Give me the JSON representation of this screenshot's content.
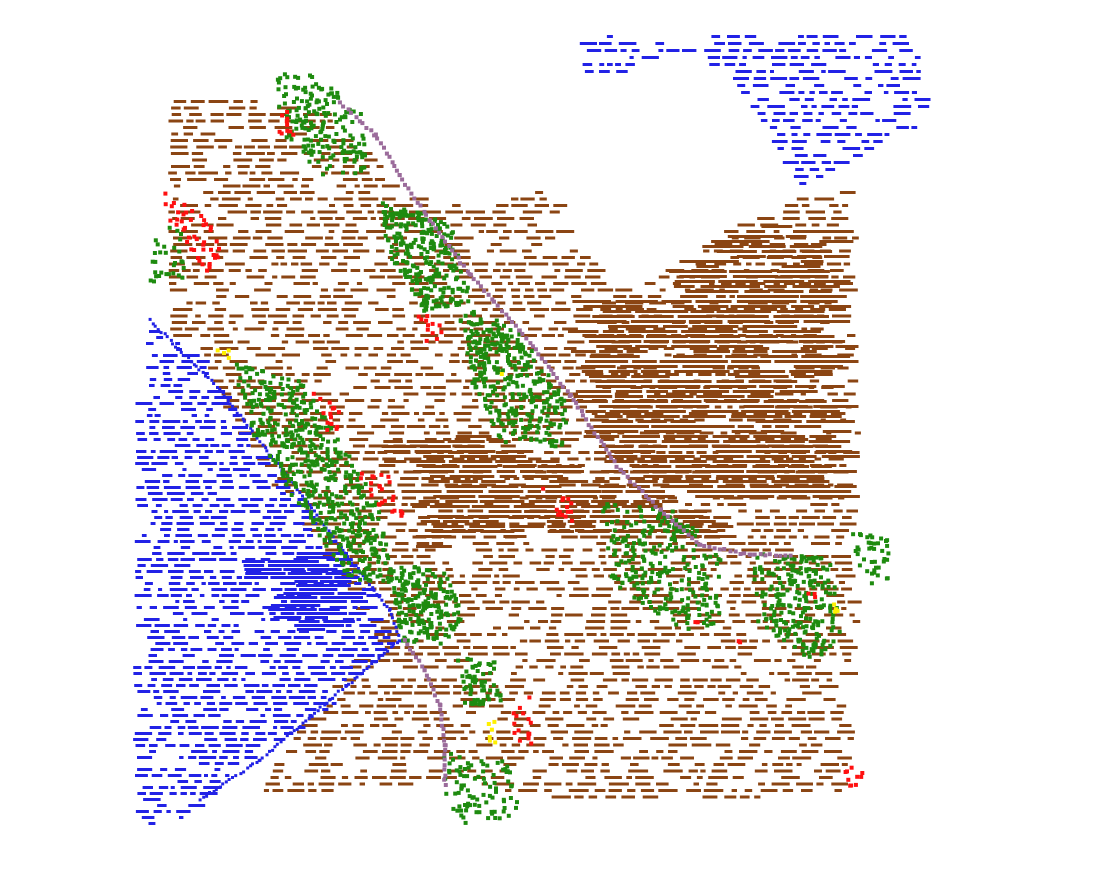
{
  "visualization": {
    "kind": "segmented point cloud (top-down scatter of labeled points)",
    "background": "#ffffff",
    "classes": [
      {
        "id": "terrain",
        "color": "#8B4513"
      },
      {
        "id": "water",
        "color": "#2222E6"
      },
      {
        "id": "vegetation",
        "color": "#1E8B0F"
      },
      {
        "id": "building",
        "color": "#FF1010"
      },
      {
        "id": "road",
        "color": "#9B6B9B"
      },
      {
        "id": "misc",
        "color": "#FFF000"
      }
    ]
  }
}
